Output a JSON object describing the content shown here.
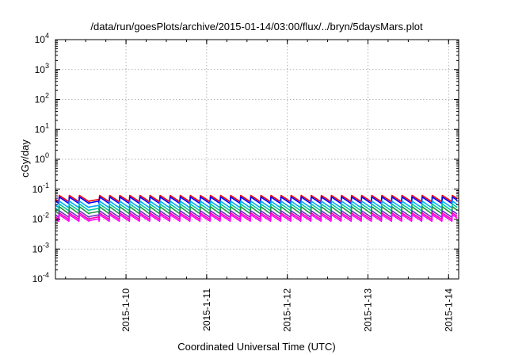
{
  "chart_data": {
    "type": "line",
    "title": "/data/run/goesPlots/archive/2015-01-14/03:00/flux/../bryn/5daysMars.plot",
    "xlabel": "Coordinated Universal Time (UTC)",
    "ylabel": "cGy/day",
    "yscale": "log",
    "ylim": [
      0.0001,
      10000
    ],
    "y_ticks": [
      {
        "base": "10",
        "exp": "-4",
        "value": 0.0001
      },
      {
        "base": "10",
        "exp": "-3",
        "value": 0.001
      },
      {
        "base": "10",
        "exp": "-2",
        "value": 0.01
      },
      {
        "base": "10",
        "exp": "-1",
        "value": 0.1
      },
      {
        "base": "10",
        "exp": "0",
        "value": 1
      },
      {
        "base": "10",
        "exp": "1",
        "value": 10
      },
      {
        "base": "10",
        "exp": "2",
        "value": 100
      },
      {
        "base": "10",
        "exp": "3",
        "value": 1000
      },
      {
        "base": "10",
        "exp": "4",
        "value": 10000
      }
    ],
    "xlim": [
      "2015-01-09 03:00",
      "2015-01-14 03:00"
    ],
    "x_ticks": [
      "2015-1-10",
      "2015-1-11",
      "2015-1-12",
      "2015-1-13",
      "2015-1-14"
    ],
    "grid": true,
    "legend": "none",
    "pattern": {
      "period_hours": 3,
      "irregular_segment": [
        "2015-01-09 12:00",
        "2015-01-09 15:00"
      ]
    },
    "series": [
      {
        "color": "#ff0000",
        "peak": 0.062,
        "trough": 0.038
      },
      {
        "color": "#0000ff",
        "peak": 0.055,
        "trough": 0.033
      },
      {
        "color": "#00aaff",
        "peak": 0.04,
        "trough": 0.024
      },
      {
        "color": "#00c8a0",
        "peak": 0.032,
        "trough": 0.019
      },
      {
        "color": "#229944",
        "peak": 0.026,
        "trough": 0.015
      },
      {
        "color": "#6633cc",
        "peak": 0.019,
        "trough": 0.0115
      },
      {
        "color": "#ff00aa",
        "peak": 0.016,
        "trough": 0.0098
      },
      {
        "color": "#ff00ff",
        "peak": 0.014,
        "trough": 0.0085
      }
    ]
  }
}
